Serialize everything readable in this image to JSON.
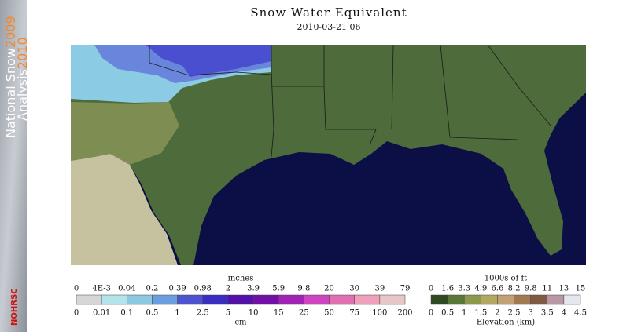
{
  "sidebar": {
    "line1": "National Snow",
    "year1": "2009",
    "line2": "Analysis",
    "year2": "2010",
    "logo": "NOHRSC"
  },
  "header": {
    "title": "Snow Water Equivalent",
    "subtitle": "2010-03-21 06"
  },
  "swe_legend": {
    "top_unit": "inches",
    "bottom_unit": "cm",
    "top_labels": [
      "0",
      "4E-3",
      "0.04",
      "0.2",
      "0.39",
      "0.98",
      "2",
      "3.9",
      "5.9",
      "9.8",
      "20",
      "30",
      "39",
      "79"
    ],
    "bottom_labels": [
      "0",
      "0.01",
      "0.1",
      "0.5",
      "1",
      "2.5",
      "5",
      "10",
      "15",
      "25",
      "50",
      "75",
      "100",
      "200"
    ],
    "colors": [
      "#d6d6d6",
      "#b2e4ea",
      "#8cc8e2",
      "#6a9ee0",
      "#4c52d0",
      "#3a2ec2",
      "#5212aa",
      "#7010a6",
      "#a322b6",
      "#d044c2",
      "#e070b2",
      "#efa0ba",
      "#e6c6c6"
    ]
  },
  "elevation_legend": {
    "top_unit": "1000s of ft",
    "bottom_unit": "Elevation (km)",
    "top_labels": [
      "0",
      "1.6",
      "3.3",
      "4.9",
      "6.6",
      "8.2",
      "9.8",
      "11",
      "13",
      "15"
    ],
    "bottom_labels": [
      "0",
      "0.5",
      "1",
      "1.5",
      "2",
      "2.5",
      "3",
      "3.5",
      "4",
      "4.5"
    ],
    "colors": [
      "#2f4a22",
      "#58783a",
      "#8a9a4a",
      "#b2a862",
      "#c2a274",
      "#a27a52",
      "#805a42",
      "#b898a4",
      "#e6e6ee"
    ]
  }
}
